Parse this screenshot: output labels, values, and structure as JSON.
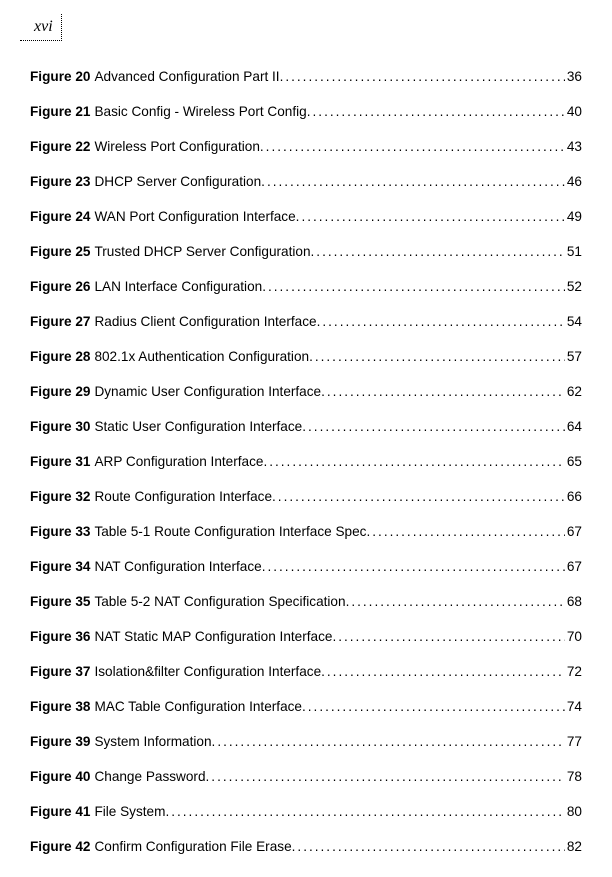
{
  "page_number": "xvi",
  "entries": [
    {
      "fig": "Figure 20",
      "title": "Advanced Configuration Part II",
      "page": "36"
    },
    {
      "fig": "Figure 21",
      "title": "Basic Config - Wireless Port Config",
      "page": "40"
    },
    {
      "fig": "Figure 22",
      "title": "Wireless Port Configuration",
      "page": "43"
    },
    {
      "fig": "Figure 23",
      "title": "DHCP Server Configuration",
      "page": "46"
    },
    {
      "fig": "Figure 24",
      "title": "WAN Port Configuration Interface",
      "page": "49"
    },
    {
      "fig": "Figure 25",
      "title": "Trusted DHCP Server Configuration",
      "page": "51"
    },
    {
      "fig": "Figure 26",
      "title": "LAN Interface Configuration",
      "page": "52"
    },
    {
      "fig": "Figure 27",
      "title": "Radius Client Configuration Interface",
      "page": "54"
    },
    {
      "fig": "Figure 28",
      "title": "802.1x Authentication Configuration",
      "page": "57"
    },
    {
      "fig": "Figure 29",
      "title": "Dynamic User Configuration Interface",
      "page": "62"
    },
    {
      "fig": "Figure 30",
      "title": "Static User Configuration Interface",
      "page": "64"
    },
    {
      "fig": "Figure 31",
      "title": "ARP Configuration Interface",
      "page": "65"
    },
    {
      "fig": "Figure 32",
      "title": "Route Configuration Interface",
      "page": "66"
    },
    {
      "fig": "Figure 33",
      "title": "Table 5-1 Route Configuration Interface Spec",
      "page": "67"
    },
    {
      "fig": "Figure 34",
      "title": "NAT Configuration Interface",
      "page": "67"
    },
    {
      "fig": "Figure 35",
      "title": "Table 5-2 NAT Configuration Specification",
      "page": "68"
    },
    {
      "fig": "Figure 36",
      "title": "NAT Static MAP Configuration Interface",
      "page": "70"
    },
    {
      "fig": "Figure 37",
      "title": "Isolation&filter Configuration Interface",
      "page": "72"
    },
    {
      "fig": "Figure 38",
      "title": "MAC Table Configuration Interface",
      "page": "74"
    },
    {
      "fig": "Figure 39",
      "title": "System Information",
      "page": "77"
    },
    {
      "fig": "Figure 40",
      "title": "Change Password",
      "page": "78"
    },
    {
      "fig": "Figure 41",
      "title": "File System",
      "page": "80"
    },
    {
      "fig": "Figure 42",
      "title": "Confirm Configuration File Erase",
      "page": "82"
    }
  ]
}
